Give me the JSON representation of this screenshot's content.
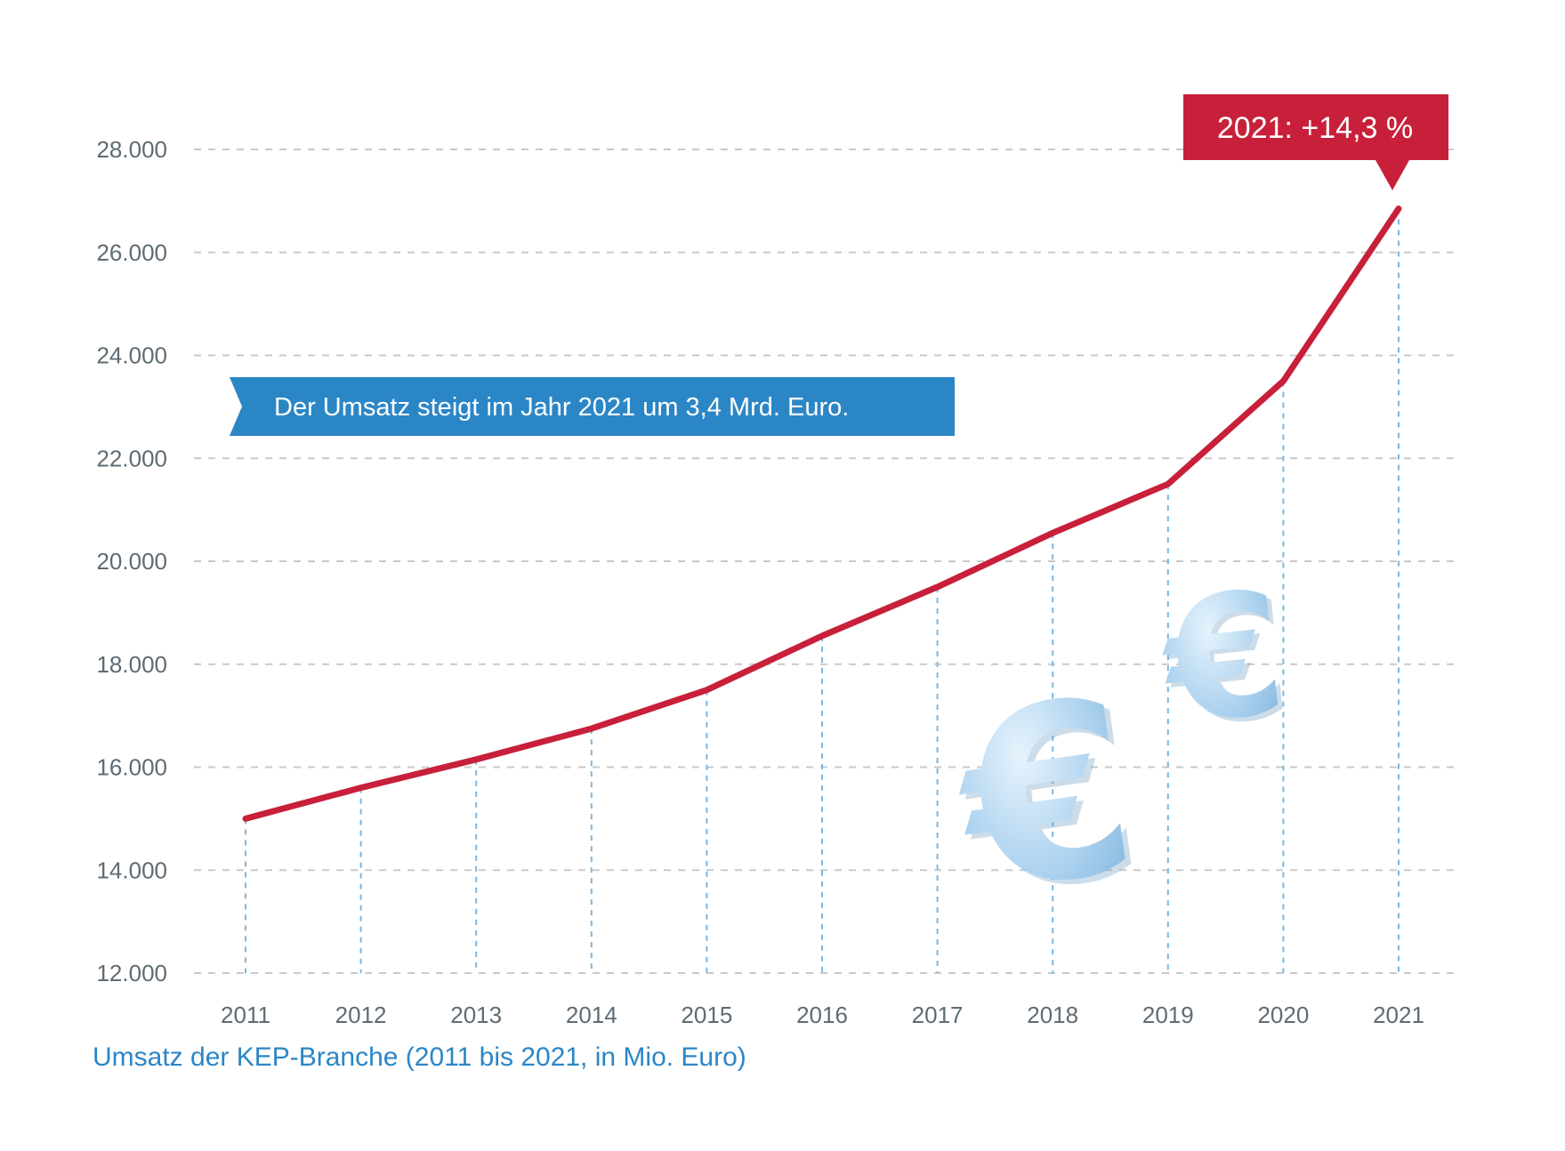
{
  "chart_data": {
    "type": "line",
    "title": "Umsatz der KEP-Branche (2011 bis 2021, in Mio. Euro)",
    "xlabel": "",
    "ylabel": "",
    "categories": [
      "2011",
      "2012",
      "2013",
      "2014",
      "2015",
      "2016",
      "2017",
      "2018",
      "2019",
      "2020",
      "2021"
    ],
    "series": [
      {
        "name": "Umsatz",
        "values": [
          15000,
          15600,
          16150,
          16750,
          17500,
          18550,
          19500,
          20550,
          21500,
          23500,
          26850
        ],
        "color": "#c8203a"
      }
    ],
    "ylim": [
      12000,
      28000
    ],
    "y_ticks": [
      12000,
      14000,
      16000,
      18000,
      20000,
      22000,
      24000,
      26000,
      28000
    ],
    "y_tick_labels": [
      "12.000",
      "14.000",
      "16.000",
      "18.000",
      "20.000",
      "22.000",
      "24.000",
      "26.000",
      "28.000"
    ],
    "grid": true,
    "annotations": {
      "callout": "2021: +14,3 %",
      "banner": "Der Umsatz steigt im Jahr 2021 um 3,4 Mrd. Euro."
    },
    "colors": {
      "line": "#c8203a",
      "callout_bg": "#c8203a",
      "banner_bg": "#2b86c6",
      "grid": "#c9c9c9",
      "drop_line": "#7ab8df",
      "tick_text": "#5f6b73",
      "caption": "#2b86c6",
      "euro": "#a9d0ee"
    }
  },
  "decorations": {
    "euro_symbol_large": "€",
    "euro_symbol_small": "€",
    "euro_icon": "euro-icon"
  }
}
